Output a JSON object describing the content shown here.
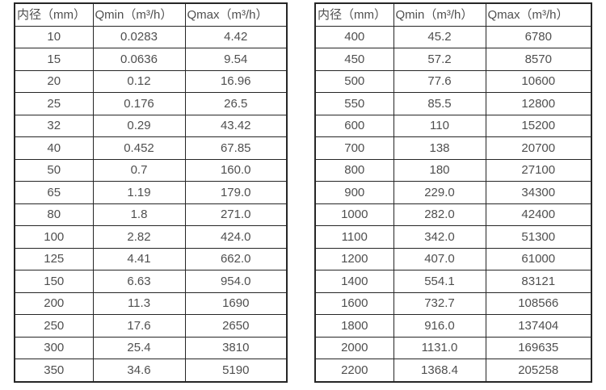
{
  "tables": [
    {
      "title": "flow-rate-table-small-diameters",
      "headers": [
        "内径（mm）",
        "Qmin（m³/h）",
        "Qmax（m³/h）"
      ],
      "rows": [
        [
          "10",
          "0.0283",
          "4.42"
        ],
        [
          "15",
          "0.0636",
          "9.54"
        ],
        [
          "20",
          "0.12",
          "16.96"
        ],
        [
          "25",
          "0.176",
          "26.5"
        ],
        [
          "32",
          "0.29",
          "43.42"
        ],
        [
          "40",
          "0.452",
          "67.85"
        ],
        [
          "50",
          "0.7",
          "160.0"
        ],
        [
          "65",
          "1.19",
          "179.0"
        ],
        [
          "80",
          "1.8",
          "271.0"
        ],
        [
          "100",
          "2.82",
          "424.0"
        ],
        [
          "125",
          "4.41",
          "662.0"
        ],
        [
          "150",
          "6.63",
          "954.0"
        ],
        [
          "200",
          "11.3",
          "1690"
        ],
        [
          "250",
          "17.6",
          "2650"
        ],
        [
          "300",
          "25.4",
          "3810"
        ],
        [
          "350",
          "34.6",
          "5190"
        ]
      ]
    },
    {
      "title": "flow-rate-table-large-diameters",
      "headers": [
        "内径（mm）",
        "Qmin（m³/h）",
        "Qmax（m³/h）"
      ],
      "rows": [
        [
          "400",
          "45.2",
          "6780"
        ],
        [
          "450",
          "57.2",
          "8570"
        ],
        [
          "500",
          "77.6",
          "10600"
        ],
        [
          "550",
          "85.5",
          "12800"
        ],
        [
          "600",
          "110",
          "15200"
        ],
        [
          "700",
          "138",
          "20700"
        ],
        [
          "800",
          "180",
          "27100"
        ],
        [
          "900",
          "229.0",
          "34300"
        ],
        [
          "1000",
          "282.0",
          "42400"
        ],
        [
          "1100",
          "342.0",
          "51300"
        ],
        [
          "1200",
          "407.0",
          "61000"
        ],
        [
          "1400",
          "554.1",
          "83121"
        ],
        [
          "1600",
          "732.7",
          "108566"
        ],
        [
          "1800",
          "916.0",
          "137404"
        ],
        [
          "2000",
          "1131.0",
          "169635"
        ],
        [
          "2200",
          "1368.4",
          "205258"
        ]
      ]
    }
  ],
  "colors": {
    "border": "#262626",
    "text": "#4f4f4f",
    "background": "#ffffff"
  }
}
